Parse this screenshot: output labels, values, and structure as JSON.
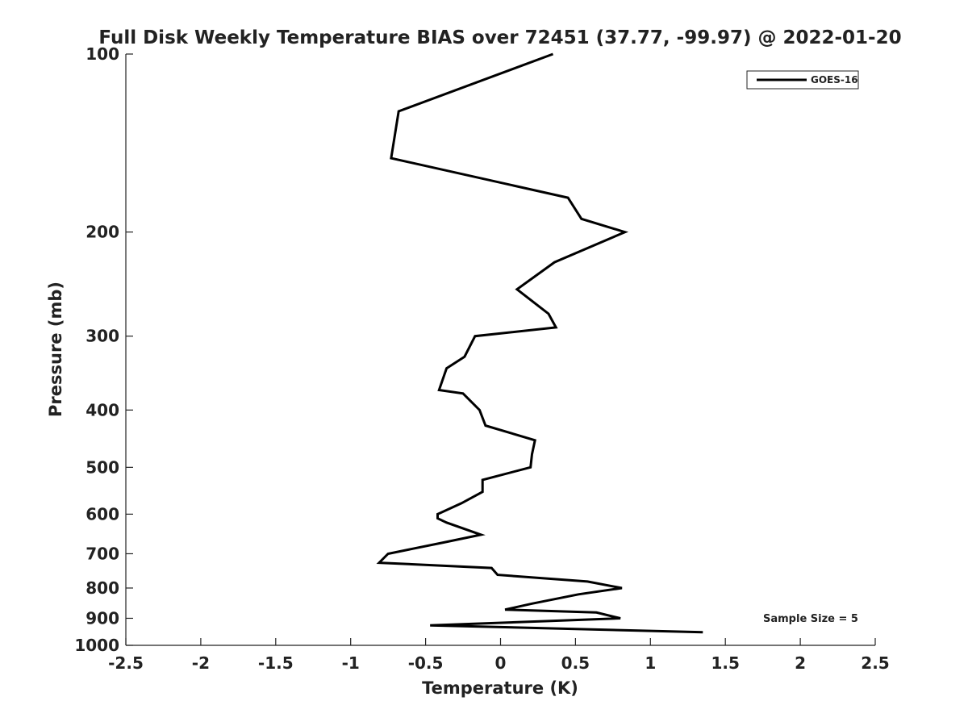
{
  "chart_data": {
    "type": "line",
    "title": "Full Disk Weekly Temperature BIAS over 72451 (37.77, -99.97) @ 2022-01-20",
    "xlabel": "Temperature (K)",
    "ylabel": "Pressure (mb)",
    "xlim": [
      -2.5,
      2.5
    ],
    "ylim": [
      100,
      1000
    ],
    "yscale": "log",
    "yaxis_inverted": true,
    "grid": false,
    "x_ticks": [
      -2.5,
      -2,
      -1.5,
      -1,
      -0.5,
      0,
      0.5,
      1,
      1.5,
      2,
      2.5
    ],
    "x_tick_labels": [
      "-2.5",
      "-2",
      "-1.5",
      "-1",
      "-0.5",
      "0",
      "0.5",
      "1",
      "1.5",
      "2",
      "2.5"
    ],
    "y_ticks": [
      100,
      200,
      300,
      400,
      500,
      600,
      700,
      800,
      900,
      1000
    ],
    "y_tick_labels": [
      "100",
      "200",
      "300",
      "400",
      "500",
      "600",
      "700",
      "800",
      "900",
      "1000"
    ],
    "legend": {
      "position": "top-right",
      "entries": [
        "GOES-16"
      ]
    },
    "annotation": "Sample Size = 5",
    "series": [
      {
        "name": "GOES-16",
        "color": "#000000",
        "points": [
          {
            "x": 0.35,
            "p": 100
          },
          {
            "x": -0.68,
            "p": 125
          },
          {
            "x": -0.73,
            "p": 150
          },
          {
            "x": 0.45,
            "p": 175
          },
          {
            "x": 0.54,
            "p": 190
          },
          {
            "x": 0.83,
            "p": 200
          },
          {
            "x": 0.36,
            "p": 225
          },
          {
            "x": 0.11,
            "p": 250
          },
          {
            "x": 0.32,
            "p": 275
          },
          {
            "x": 0.37,
            "p": 290
          },
          {
            "x": -0.17,
            "p": 300
          },
          {
            "x": -0.24,
            "p": 325
          },
          {
            "x": -0.36,
            "p": 340
          },
          {
            "x": -0.41,
            "p": 370
          },
          {
            "x": -0.25,
            "p": 375
          },
          {
            "x": -0.14,
            "p": 400
          },
          {
            "x": -0.1,
            "p": 425
          },
          {
            "x": 0.23,
            "p": 450
          },
          {
            "x": 0.21,
            "p": 475
          },
          {
            "x": 0.2,
            "p": 500
          },
          {
            "x": -0.12,
            "p": 525
          },
          {
            "x": -0.12,
            "p": 550
          },
          {
            "x": -0.26,
            "p": 575
          },
          {
            "x": -0.42,
            "p": 600
          },
          {
            "x": -0.42,
            "p": 610
          },
          {
            "x": -0.36,
            "p": 620
          },
          {
            "x": -0.13,
            "p": 650
          },
          {
            "x": -0.38,
            "p": 670
          },
          {
            "x": -0.75,
            "p": 700
          },
          {
            "x": -0.81,
            "p": 725
          },
          {
            "x": -0.06,
            "p": 740
          },
          {
            "x": -0.02,
            "p": 760
          },
          {
            "x": 0.58,
            "p": 780
          },
          {
            "x": 0.81,
            "p": 800
          },
          {
            "x": 0.52,
            "p": 820
          },
          {
            "x": 0.21,
            "p": 850
          },
          {
            "x": 0.03,
            "p": 870
          },
          {
            "x": 0.64,
            "p": 880
          },
          {
            "x": 0.8,
            "p": 900
          },
          {
            "x": 0.3,
            "p": 910
          },
          {
            "x": -0.47,
            "p": 925
          },
          {
            "x": 1.35,
            "p": 950
          }
        ]
      }
    ]
  }
}
